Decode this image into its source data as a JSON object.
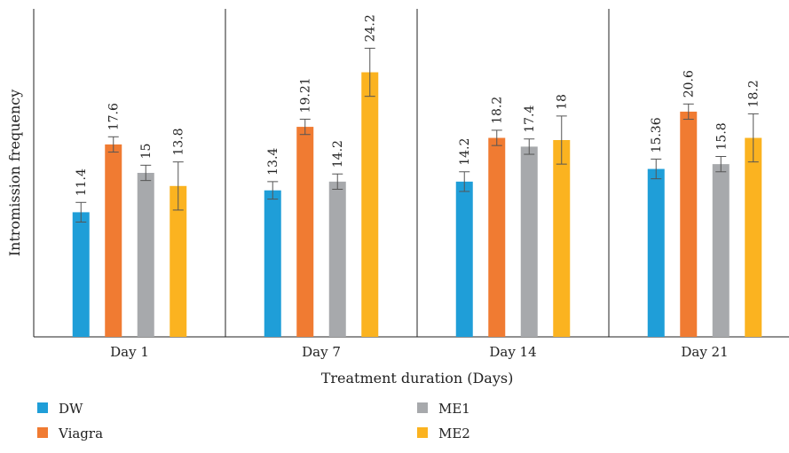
{
  "chart_data": {
    "type": "bar",
    "title": "",
    "xlabel": "Treatment duration (Days)",
    "ylabel": "Intromission frequency",
    "ylim": [
      0,
      30
    ],
    "grid": false,
    "legend_position": "bottom",
    "categories": [
      "Day 1",
      "Day 7",
      "Day 14",
      "Day 21"
    ],
    "series": [
      {
        "name": "DW",
        "color": "#1f9ed8",
        "values": [
          11.4,
          13.4,
          14.2,
          15.36
        ],
        "labels": [
          "11.4",
          "13.4",
          "14.2",
          "15.36"
        ],
        "errors": [
          0.9,
          0.8,
          0.9,
          0.9
        ]
      },
      {
        "name": "Viagra",
        "color": "#f07b32",
        "values": [
          17.6,
          19.21,
          18.2,
          20.6
        ],
        "labels": [
          "17.6",
          "19.21",
          "18.2",
          "20.6"
        ],
        "errors": [
          0.7,
          0.7,
          0.7,
          0.7
        ]
      },
      {
        "name": "ME1",
        "color": "#a7a9ac",
        "values": [
          15,
          14.2,
          17.4,
          15.8
        ],
        "labels": [
          "15",
          "14.2",
          "17.4",
          "15.8"
        ],
        "errors": [
          0.7,
          0.7,
          0.7,
          0.7
        ]
      },
      {
        "name": "ME2",
        "color": "#fbb320",
        "values": [
          13.8,
          24.2,
          18,
          18.2
        ],
        "labels": [
          "13.8",
          "24.2",
          "18",
          "18.2"
        ],
        "errors": [
          2.2,
          2.2,
          2.2,
          2.2
        ]
      }
    ]
  }
}
